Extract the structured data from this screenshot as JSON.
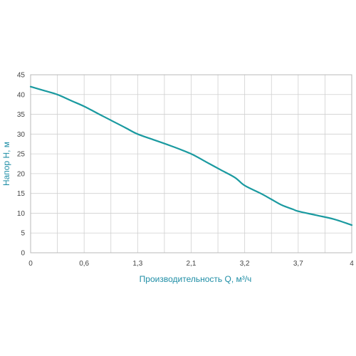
{
  "chart_data": {
    "type": "line",
    "title": "",
    "xlabel": "Производительность Q, м³/ч",
    "ylabel": "Напор H, м",
    "x_ticks": [
      "0",
      "0,6",
      "1,3",
      "2,1",
      "3,2",
      "3,7",
      "4"
    ],
    "y_ticks": [
      "0",
      "5",
      "10",
      "15",
      "20",
      "25",
      "30",
      "35",
      "40",
      "45"
    ],
    "ylim": [
      0,
      45
    ],
    "grid": true,
    "series": [
      {
        "x": [
          0,
          0.15,
          0.3,
          0.45,
          0.6,
          0.8,
          1.0,
          1.15,
          1.3,
          1.55,
          1.8,
          2.1,
          2.4,
          2.7,
          3.0,
          3.2,
          3.35,
          3.45,
          3.55,
          3.65,
          3.7,
          3.8,
          3.9,
          4.0
        ],
        "y": [
          42,
          41,
          40,
          38.5,
          37,
          35,
          33,
          31.5,
          30,
          28.5,
          27,
          25,
          23,
          21,
          19,
          17,
          15,
          13.5,
          12,
          11,
          10.5,
          9.5,
          8.5,
          7
        ]
      }
    ],
    "colors": {
      "line": "#1a9aa0",
      "axis_label": "#1f8ea6",
      "grid": "#d0d0d0",
      "frame": "#b8b8b8"
    }
  }
}
